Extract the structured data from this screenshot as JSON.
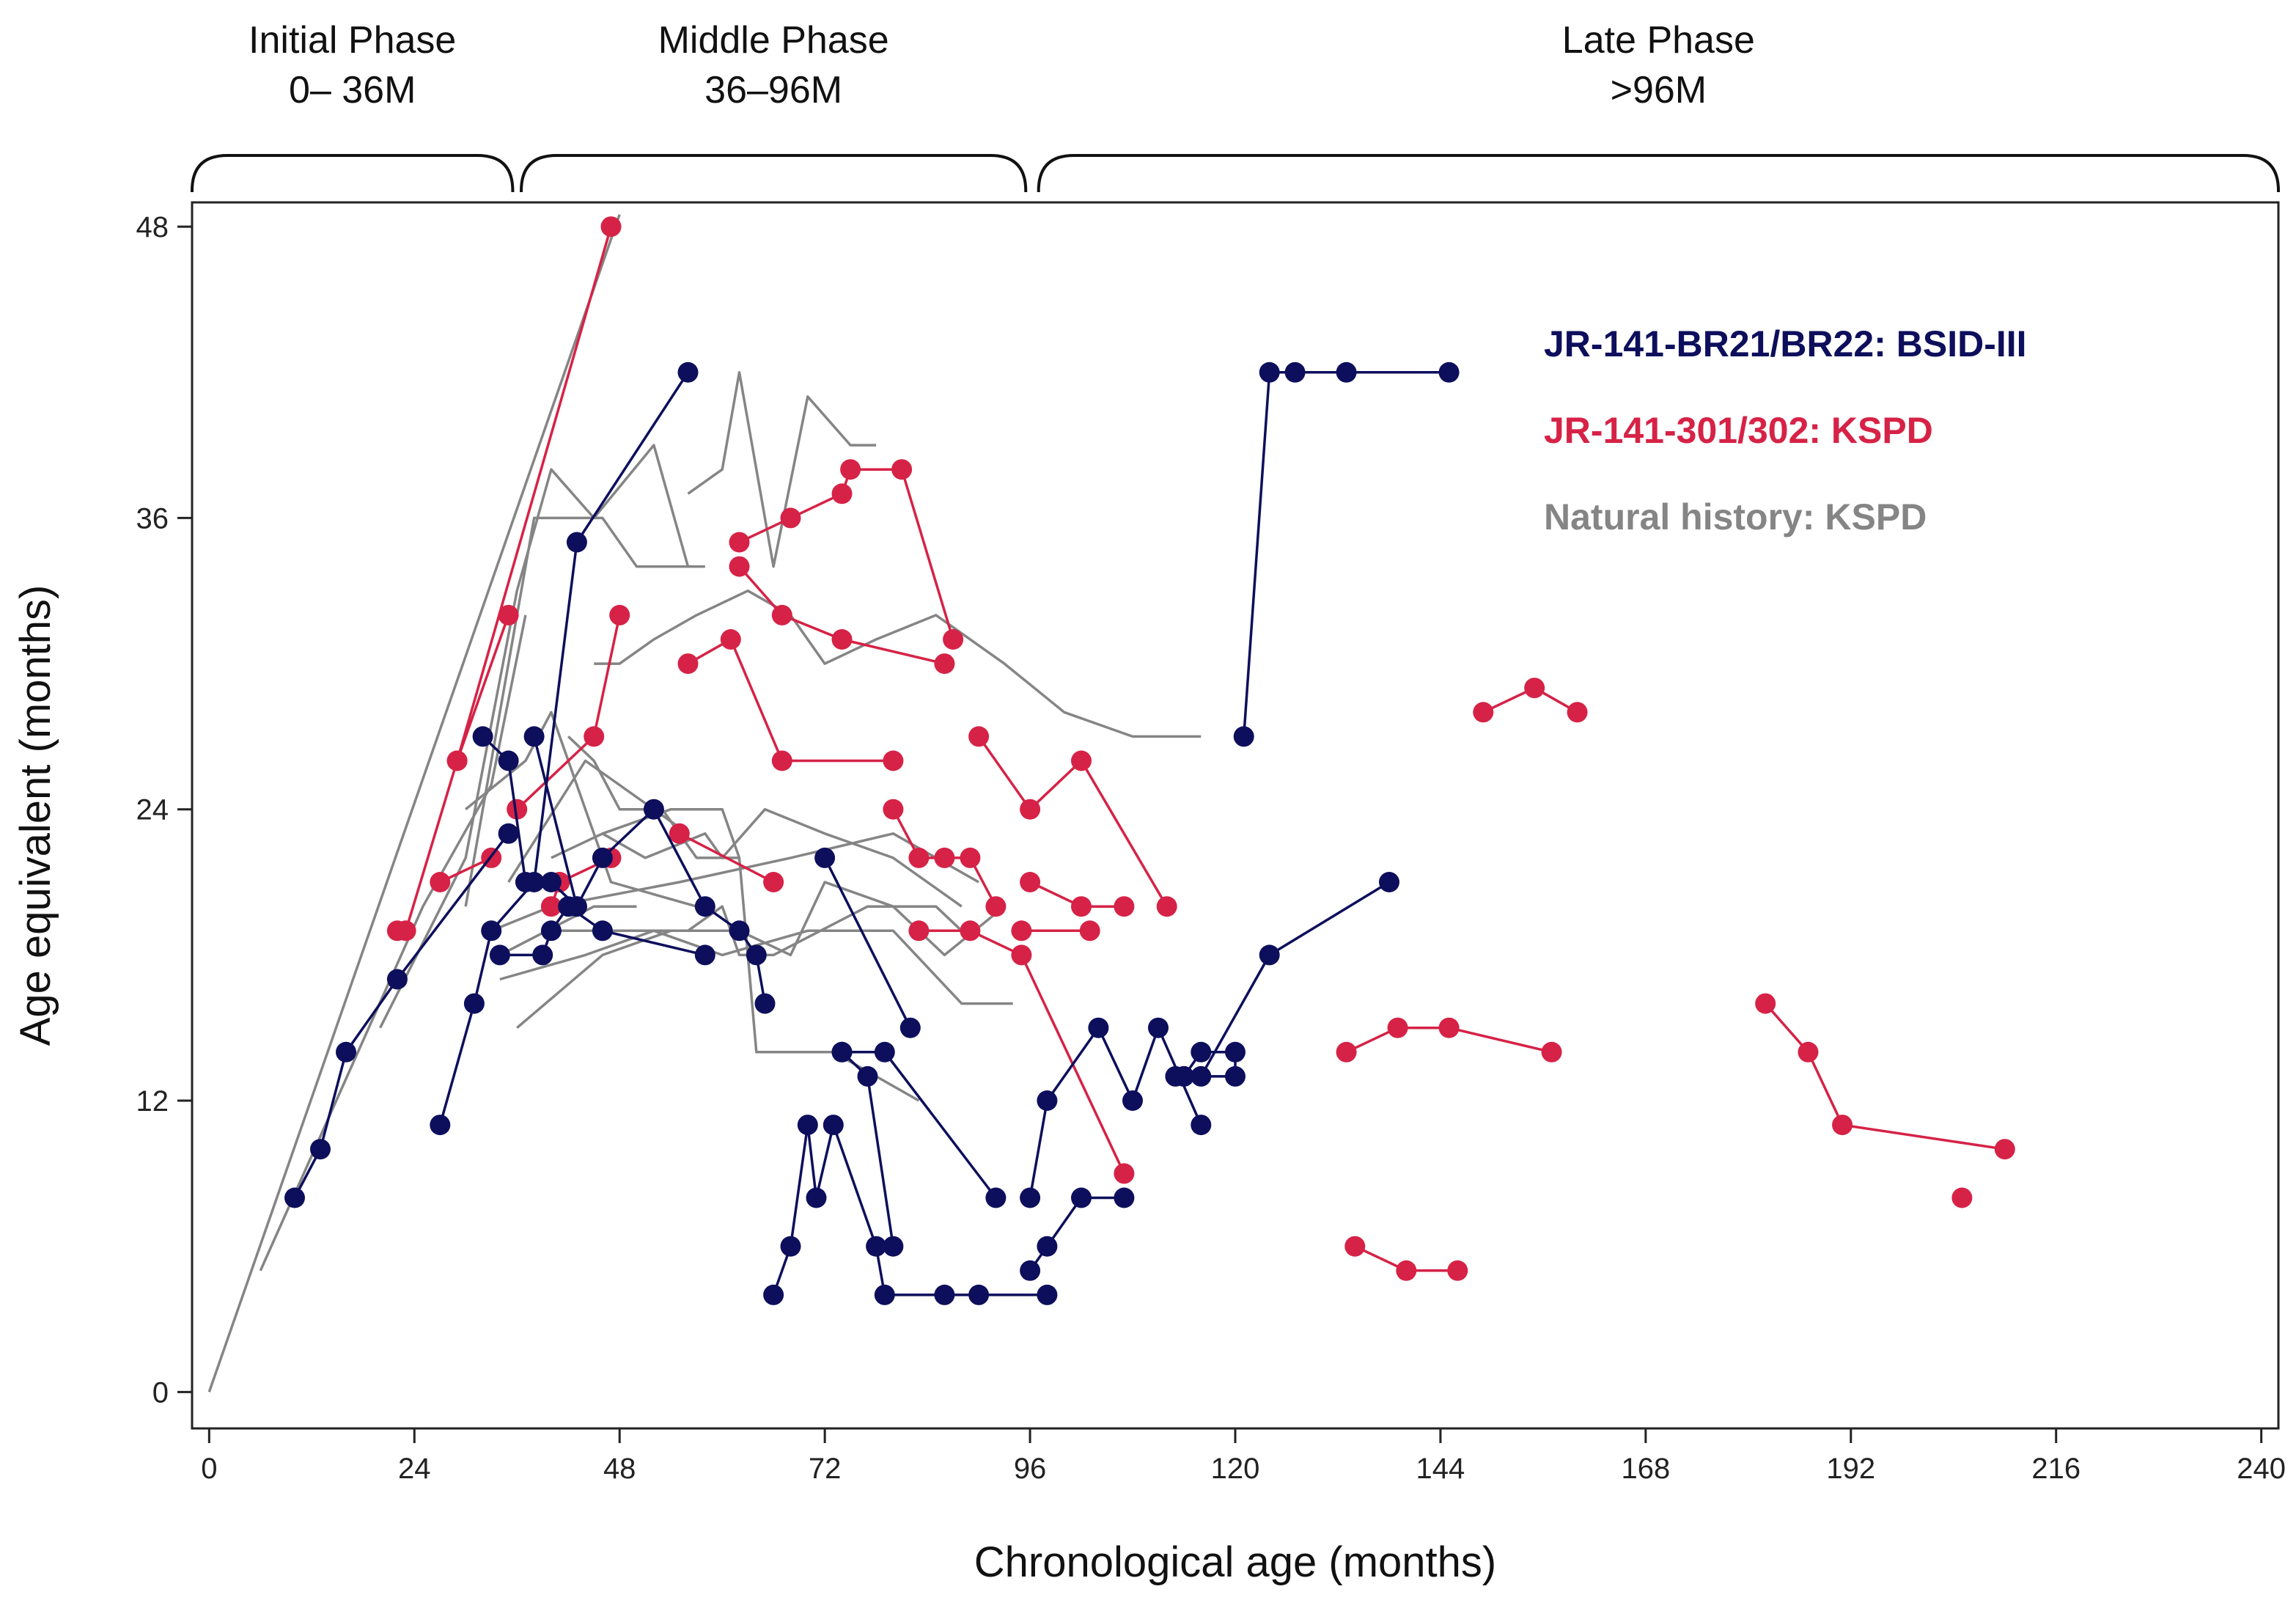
{
  "chart_data": {
    "type": "line",
    "xlabel": "Chronological age (months)",
    "ylabel": "Age equivalent (months)",
    "xlim": [
      -2,
      242
    ],
    "ylim": [
      -1.5,
      49
    ],
    "xticks": [
      0,
      24,
      48,
      72,
      96,
      120,
      144,
      168,
      192,
      216,
      240
    ],
    "yticks": [
      0,
      12,
      24,
      36,
      48
    ],
    "grid": false,
    "legend_position": "top-right",
    "phases": [
      {
        "title": "Initial Phase",
        "range_label": "0– 36M",
        "start": -2,
        "end": 35.5
      },
      {
        "title": "Middle Phase",
        "range_label": "36–96M",
        "start": 36.5,
        "end": 95.5
      },
      {
        "title": "Late Phase",
        "range_label": ">96M",
        "start": 97,
        "end": 242
      }
    ],
    "legend": [
      {
        "label": "JR-141-BR21/BR22: BSID-III",
        "series": "bsid"
      },
      {
        "label": "JR-141-301/302: KSPD",
        "series": "kspd"
      },
      {
        "label": "Natural history: KSPD",
        "series": "natural"
      }
    ],
    "series": [
      {
        "name": "JR-141-BR21/BR22: BSID-III",
        "key": "bsid",
        "color": "#0d0f5c",
        "markers": true,
        "lines": [
          [
            [
              10,
              8
            ],
            [
              13,
              10
            ],
            [
              16,
              14
            ],
            [
              22,
              17
            ],
            [
              35,
              23
            ]
          ],
          [
            [
              27,
              11
            ],
            [
              31,
              16
            ],
            [
              33,
              19
            ],
            [
              38,
              21
            ],
            [
              43,
              35
            ],
            [
              56,
              42
            ]
          ],
          [
            [
              32,
              27
            ],
            [
              35,
              26
            ],
            [
              37,
              21
            ],
            [
              40,
              21
            ],
            [
              43,
              20
            ],
            [
              46,
              22
            ],
            [
              52,
              24
            ],
            [
              58,
              20
            ],
            [
              62,
              19
            ],
            [
              64,
              18
            ],
            [
              65,
              16
            ]
          ],
          [
            [
              34,
              18
            ],
            [
              39,
              18
            ],
            [
              40,
              19
            ],
            [
              42,
              20
            ],
            [
              46,
              19
            ],
            [
              58,
              18
            ]
          ],
          [
            [
              38,
              27
            ],
            [
              43,
              20
            ]
          ],
          [
            [
              66,
              4
            ],
            [
              68,
              6
            ],
            [
              70,
              11
            ],
            [
              71,
              8
            ],
            [
              73,
              11
            ],
            [
              78,
              6
            ],
            [
              79,
              4
            ],
            [
              86,
              4
            ],
            [
              90,
              4
            ],
            [
              98,
              4
            ]
          ],
          [
            [
              72,
              22
            ],
            [
              82,
              15
            ]
          ],
          [
            [
              74,
              14
            ],
            [
              79,
              14
            ],
            [
              92,
              8
            ]
          ],
          [
            [
              74,
              14
            ],
            [
              77,
              13
            ],
            [
              80,
              6
            ]
          ],
          [
            [
              96,
              8
            ],
            [
              98,
              12
            ],
            [
              104,
              15
            ],
            [
              108,
              12
            ],
            [
              111,
              15
            ],
            [
              116,
              11
            ]
          ],
          [
            [
              96,
              5
            ],
            [
              98,
              6
            ],
            [
              102,
              8
            ],
            [
              107,
              8
            ]
          ],
          [
            [
              113,
              13
            ],
            [
              114,
              13
            ],
            [
              116,
              14
            ],
            [
              120,
              14
            ],
            [
              120,
              13
            ],
            [
              114,
              13
            ]
          ],
          [
            [
              116,
              13
            ],
            [
              124,
              18
            ],
            [
              138,
              21
            ]
          ],
          [
            [
              121,
              27
            ],
            [
              124,
              42
            ],
            [
              127,
              42
            ],
            [
              133,
              42
            ],
            [
              145,
              42
            ]
          ]
        ]
      },
      {
        "name": "JR-141-301/302: KSPD",
        "key": "kspd",
        "color": "#d62246",
        "markers": true,
        "lines": [
          [
            [
              22,
              19
            ],
            [
              23,
              19
            ],
            [
              29,
              26
            ],
            [
              35,
              32
            ]
          ],
          [
            [
              27,
              21
            ],
            [
              33,
              22
            ]
          ],
          [
            [
              47,
              48
            ],
            [
              29,
              26
            ]
          ],
          [
            [
              36,
              24
            ],
            [
              45,
              27
            ],
            [
              48,
              32
            ]
          ],
          [
            [
              40,
              20
            ],
            [
              41,
              21
            ],
            [
              47,
              22
            ]
          ],
          [
            [
              55,
              23
            ],
            [
              66,
              21
            ]
          ],
          [
            [
              56,
              30
            ],
            [
              61,
              31
            ],
            [
              67,
              26
            ],
            [
              80,
              26
            ]
          ],
          [
            [
              62,
              35
            ],
            [
              68,
              36
            ],
            [
              74,
              37
            ],
            [
              75,
              38
            ],
            [
              81,
              38
            ],
            [
              87,
              31
            ]
          ],
          [
            [
              62,
              34
            ],
            [
              67,
              32
            ],
            [
              74,
              31
            ],
            [
              86,
              30
            ]
          ],
          [
            [
              80,
              24
            ],
            [
              83,
              22
            ],
            [
              86,
              22
            ],
            [
              89,
              22
            ],
            [
              92,
              20
            ]
          ],
          [
            [
              83,
              19
            ],
            [
              89,
              19
            ],
            [
              95,
              18
            ],
            [
              107,
              9
            ]
          ],
          [
            [
              90,
              27
            ],
            [
              96,
              24
            ],
            [
              102,
              26
            ],
            [
              112,
              20
            ]
          ],
          [
            [
              96,
              21
            ],
            [
              102,
              20
            ],
            [
              107,
              20
            ]
          ],
          [
            [
              95,
              19
            ],
            [
              103,
              19
            ]
          ],
          [
            [
              133,
              14
            ],
            [
              139,
              15
            ],
            [
              145,
              15
            ],
            [
              157,
              14
            ]
          ],
          [
            [
              134,
              6
            ],
            [
              140,
              5
            ],
            [
              146,
              5
            ]
          ],
          [
            [
              149,
              28
            ],
            [
              155,
              29
            ],
            [
              160,
              28
            ]
          ],
          [
            [
              182,
              16
            ],
            [
              187,
              14
            ],
            [
              191,
              11
            ],
            [
              210,
              10
            ]
          ],
          [
            [
              205,
              8
            ]
          ]
        ]
      },
      {
        "name": "Natural history: KSPD",
        "key": "natural",
        "color": "#858585",
        "markers": false,
        "lines": [
          [
            [
              0,
              0
            ],
            [
              48,
              48.5
            ]
          ],
          [
            [
              6,
              5
            ],
            [
              25,
              20
            ],
            [
              33,
              25
            ],
            [
              37,
              32
            ]
          ],
          [
            [
              20,
              15
            ],
            [
              30,
              22
            ],
            [
              36,
              33
            ],
            [
              40,
              38
            ],
            [
              45,
              36
            ],
            [
              52,
              39
            ],
            [
              56,
              34
            ]
          ],
          [
            [
              30,
              20
            ],
            [
              38,
              36
            ],
            [
              46,
              36
            ],
            [
              50,
              34
            ],
            [
              58,
              34
            ]
          ],
          [
            [
              30,
              24
            ],
            [
              37,
              26
            ],
            [
              40,
              28
            ],
            [
              47,
              21
            ],
            [
              57,
              20
            ]
          ],
          [
            [
              35,
              21
            ],
            [
              44,
              26
            ],
            [
              56,
              23
            ]
          ],
          [
            [
              40,
              22
            ],
            [
              46,
              23
            ],
            [
              54,
              24
            ],
            [
              60,
              24
            ],
            [
              62,
              22
            ],
            [
              64,
              14
            ],
            [
              73,
              14
            ],
            [
              78,
              13
            ],
            [
              83,
              12
            ]
          ],
          [
            [
              40,
              19
            ],
            [
              56,
              19
            ],
            [
              60,
              20
            ],
            [
              62,
              18
            ],
            [
              66,
              18
            ],
            [
              77,
              20
            ],
            [
              85,
              20
            ],
            [
              88,
              19
            ]
          ],
          [
            [
              34,
              18
            ],
            [
              45,
              20
            ],
            [
              50,
              20
            ]
          ],
          [
            [
              33,
              19
            ],
            [
              40,
              20
            ],
            [
              55,
              21
            ],
            [
              68,
              22
            ],
            [
              80,
              23
            ],
            [
              90,
              21
            ]
          ],
          [
            [
              34,
              17
            ],
            [
              44,
              18
            ],
            [
              52,
              19
            ],
            [
              60,
              18
            ],
            [
              70,
              19
            ],
            [
              80,
              19
            ],
            [
              88,
              16
            ],
            [
              94,
              16
            ]
          ],
          [
            [
              36,
              15
            ],
            [
              46,
              18
            ],
            [
              54,
              19
            ],
            [
              62,
              19
            ],
            [
              68,
              18
            ],
            [
              72,
              21
            ],
            [
              80,
              20
            ],
            [
              86,
              18
            ],
            [
              93,
              20
            ]
          ],
          [
            [
              46,
              23
            ],
            [
              51,
              22
            ],
            [
              58,
              23
            ],
            [
              60,
              22
            ],
            [
              65,
              24
            ],
            [
              72,
              23
            ],
            [
              80,
              22
            ],
            [
              88,
              20
            ]
          ],
          [
            [
              56,
              37
            ],
            [
              60,
              38
            ],
            [
              62,
              42
            ],
            [
              66,
              34
            ],
            [
              70,
              41
            ],
            [
              75,
              39
            ],
            [
              78,
              39
            ]
          ],
          [
            [
              42,
              27
            ],
            [
              45,
              26
            ],
            [
              48,
              24
            ],
            [
              53,
              24
            ],
            [
              57,
              22
            ],
            [
              62,
              22
            ]
          ],
          [
            [
              45,
              30
            ],
            [
              48,
              30
            ],
            [
              52,
              31
            ],
            [
              57,
              32
            ],
            [
              63,
              33
            ],
            [
              68,
              32
            ],
            [
              72,
              30
            ],
            [
              78,
              31
            ],
            [
              85,
              32
            ],
            [
              93,
              30
            ],
            [
              100,
              28
            ],
            [
              108,
              27
            ],
            [
              116,
              27
            ]
          ]
        ]
      }
    ]
  }
}
